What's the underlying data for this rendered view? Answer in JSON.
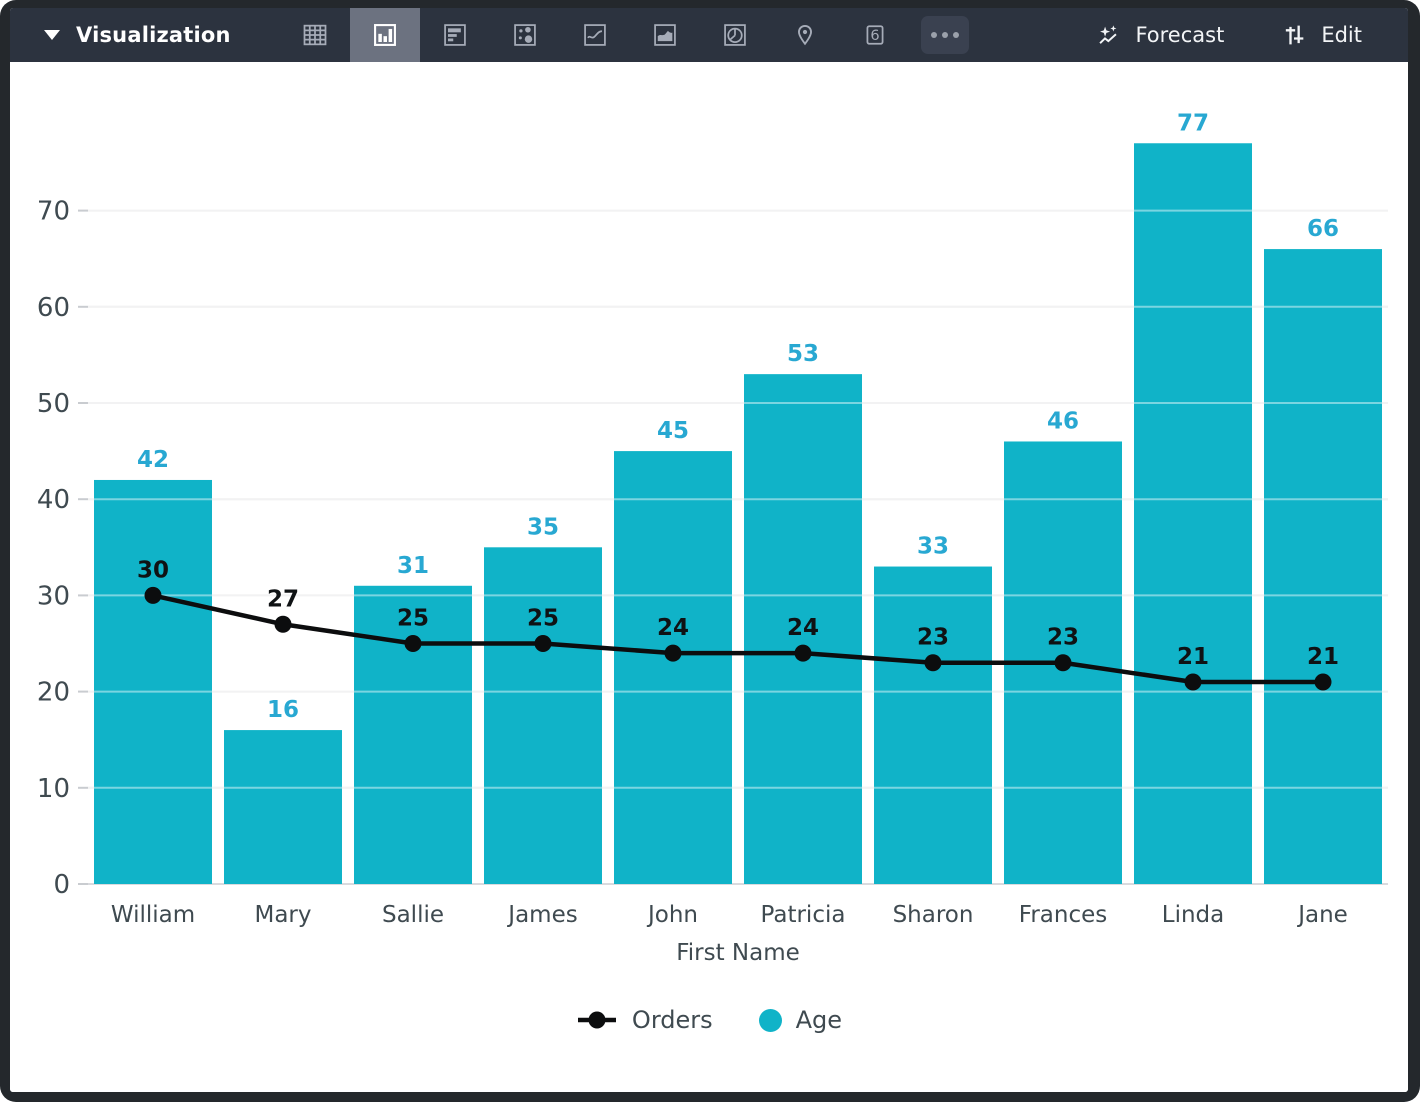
{
  "toolbar": {
    "title": "Visualization",
    "forecast_label": "Forecast",
    "edit_label": "Edit",
    "single_value_glyph": "6",
    "icons": [
      "table",
      "column-chart",
      "bar-chart",
      "scatter",
      "line-chart",
      "area-chart",
      "pie-chart",
      "map",
      "single-value",
      "more"
    ],
    "selected_icon": "column-chart"
  },
  "chart_data": {
    "type": "combo-bar-line",
    "categories": [
      "William",
      "Mary",
      "Sallie",
      "James",
      "John",
      "Patricia",
      "Sharon",
      "Frances",
      "Linda",
      "Jane"
    ],
    "series": [
      {
        "name": "Orders",
        "type": "line",
        "color": "#0c0d0e",
        "values": [
          30,
          27,
          25,
          25,
          24,
          24,
          23,
          23,
          21,
          21
        ]
      },
      {
        "name": "Age",
        "type": "bar",
        "color": "#10b3c8",
        "label_color": "#28a8d2",
        "values": [
          42,
          16,
          31,
          35,
          45,
          53,
          33,
          46,
          77,
          66
        ]
      }
    ],
    "xlabel": "First Name",
    "ylabel": "",
    "y_ticks": [
      0,
      10,
      20,
      30,
      40,
      50,
      60,
      70
    ],
    "ylim": [
      0,
      80
    ],
    "grid": true,
    "legend_position": "bottom",
    "data_labels": true
  },
  "colors": {
    "toolbar_bg": "#2c333f",
    "selected_icon_bg": "#6c7280",
    "frame": "#24282c",
    "axis_text": "#3f4a50",
    "gridline": "#e8e8ea",
    "baseline": "#d9dade",
    "tick": "#c9ccd0"
  }
}
